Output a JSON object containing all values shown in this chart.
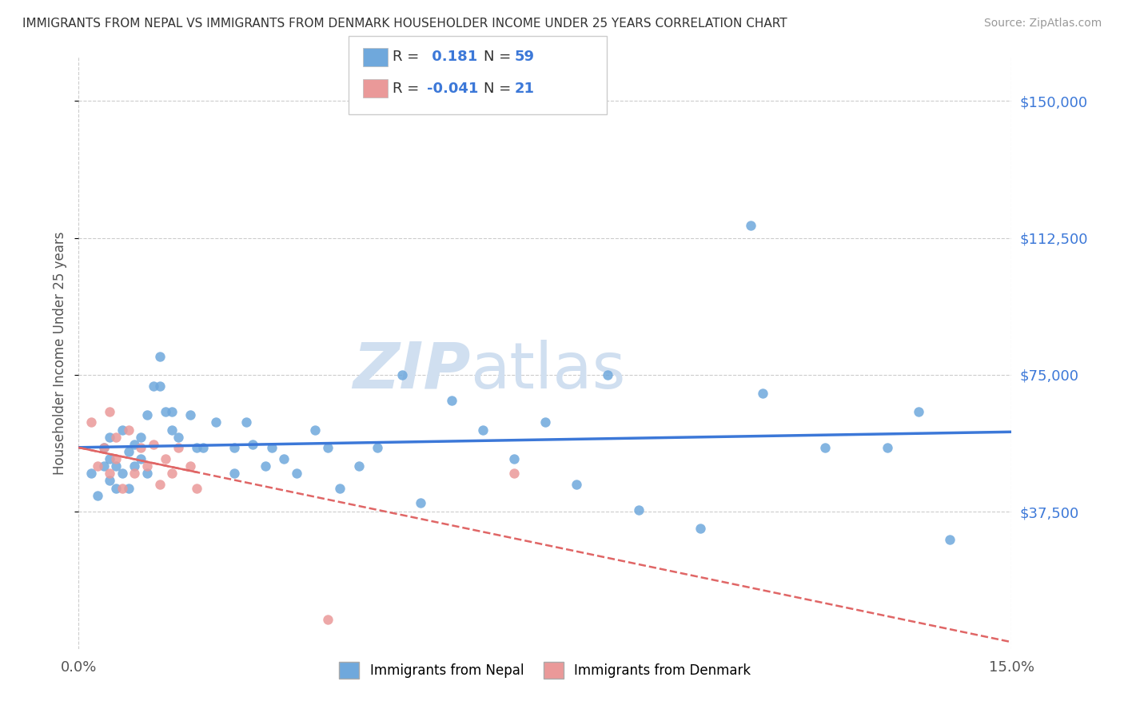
{
  "title": "IMMIGRANTS FROM NEPAL VS IMMIGRANTS FROM DENMARK HOUSEHOLDER INCOME UNDER 25 YEARS CORRELATION CHART",
  "source": "Source: ZipAtlas.com",
  "ylabel": "Householder Income Under 25 years",
  "xlim": [
    0.0,
    0.15
  ],
  "ylim": [
    0,
    162000
  ],
  "ytick_vals": [
    37500,
    75000,
    112500,
    150000
  ],
  "ytick_labels": [
    "$37,500",
    "$75,000",
    "$112,500",
    "$150,000"
  ],
  "xtick_vals": [
    0.0,
    0.15
  ],
  "xtick_labels": [
    "0.0%",
    "15.0%"
  ],
  "nepal_R": 0.181,
  "nepal_N": 59,
  "denmark_R": -0.041,
  "denmark_N": 21,
  "nepal_color": "#6fa8dc",
  "denmark_color": "#ea9999",
  "nepal_line_color": "#3c78d8",
  "denmark_line_color": "#e06666",
  "grid_color": "#cccccc",
  "watermark_color": "#d0dff0",
  "nepal_scatter_x": [
    0.002,
    0.003,
    0.004,
    0.004,
    0.005,
    0.005,
    0.005,
    0.006,
    0.006,
    0.007,
    0.007,
    0.008,
    0.008,
    0.009,
    0.009,
    0.01,
    0.01,
    0.011,
    0.011,
    0.012,
    0.013,
    0.013,
    0.014,
    0.015,
    0.015,
    0.016,
    0.018,
    0.019,
    0.02,
    0.022,
    0.025,
    0.025,
    0.027,
    0.028,
    0.03,
    0.031,
    0.033,
    0.035,
    0.038,
    0.04,
    0.042,
    0.045,
    0.048,
    0.052,
    0.055,
    0.06,
    0.065,
    0.07,
    0.075,
    0.08,
    0.085,
    0.09,
    0.1,
    0.11,
    0.12,
    0.13,
    0.135,
    0.14,
    0.108
  ],
  "nepal_scatter_y": [
    48000,
    42000,
    55000,
    50000,
    46000,
    52000,
    58000,
    44000,
    50000,
    60000,
    48000,
    54000,
    44000,
    50000,
    56000,
    58000,
    52000,
    48000,
    64000,
    72000,
    80000,
    72000,
    65000,
    60000,
    65000,
    58000,
    64000,
    55000,
    55000,
    62000,
    48000,
    55000,
    62000,
    56000,
    50000,
    55000,
    52000,
    48000,
    60000,
    55000,
    44000,
    50000,
    55000,
    75000,
    40000,
    68000,
    60000,
    52000,
    62000,
    45000,
    75000,
    38000,
    33000,
    70000,
    55000,
    55000,
    65000,
    30000,
    116000
  ],
  "denmark_scatter_x": [
    0.002,
    0.003,
    0.004,
    0.005,
    0.005,
    0.006,
    0.006,
    0.007,
    0.008,
    0.009,
    0.01,
    0.011,
    0.012,
    0.013,
    0.014,
    0.015,
    0.016,
    0.018,
    0.019,
    0.07,
    0.04
  ],
  "denmark_scatter_y": [
    62000,
    50000,
    55000,
    65000,
    48000,
    52000,
    58000,
    44000,
    60000,
    48000,
    55000,
    50000,
    56000,
    45000,
    52000,
    48000,
    55000,
    50000,
    44000,
    48000,
    8000
  ]
}
